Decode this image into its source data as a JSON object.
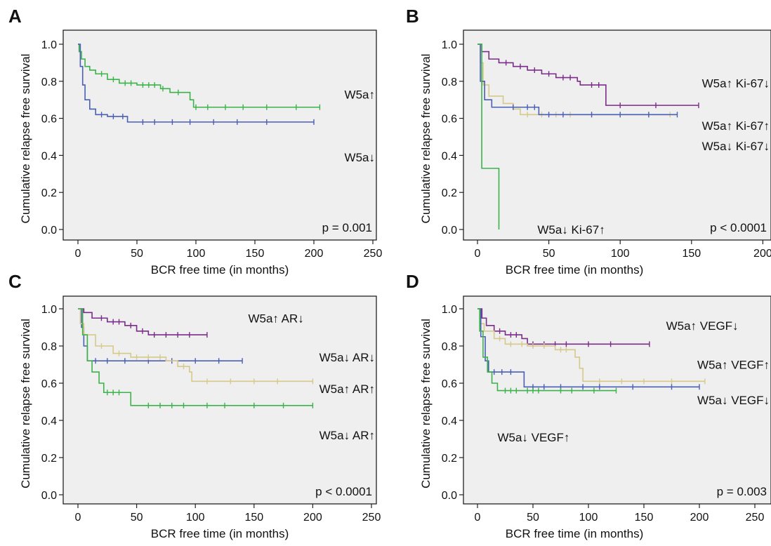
{
  "chart_data": [
    {
      "panel_letter": "A",
      "type": "line",
      "xlabel": "BCR free time (in months)",
      "ylabel": "Cumulative relapse free survival",
      "xlim": [
        0,
        250
      ],
      "ylim": [
        0,
        1.0
      ],
      "xticks": [
        "0",
        "50",
        "100",
        "150",
        "200",
        "250"
      ],
      "yticks": [
        "0.0",
        "0.2",
        "0.4",
        "0.6",
        "0.8",
        "1.0"
      ],
      "p_value": "p = 0.001",
      "series": [
        {
          "name": "W5a↑",
          "color": "#3bb34a",
          "label_x": 218,
          "label_y": 0.73,
          "points": [
            [
              0,
              1.0
            ],
            [
              1,
              0.96
            ],
            [
              3,
              0.92
            ],
            [
              6,
              0.88
            ],
            [
              10,
              0.86
            ],
            [
              15,
              0.84
            ],
            [
              25,
              0.81
            ],
            [
              35,
              0.79
            ],
            [
              50,
              0.78
            ],
            [
              70,
              0.76
            ],
            [
              78,
              0.74
            ],
            [
              95,
              0.7
            ],
            [
              98,
              0.66
            ],
            [
              205,
              0.66
            ]
          ],
          "censor": [
            20,
            30,
            40,
            45,
            55,
            60,
            65,
            72,
            85,
            100,
            110,
            125,
            140,
            160,
            185,
            205
          ]
        },
        {
          "name": "W5a↓",
          "color": "#4a5fb6",
          "label_x": 218,
          "label_y": 0.39,
          "points": [
            [
              0,
              1.0
            ],
            [
              2,
              0.88
            ],
            [
              4,
              0.78
            ],
            [
              6,
              0.7
            ],
            [
              10,
              0.65
            ],
            [
              15,
              0.62
            ],
            [
              25,
              0.61
            ],
            [
              42,
              0.58
            ],
            [
              200,
              0.58
            ]
          ],
          "censor": [
            20,
            30,
            38,
            55,
            65,
            80,
            95,
            115,
            135,
            160,
            200
          ]
        }
      ]
    },
    {
      "panel_letter": "B",
      "type": "line",
      "xlabel": "BCR free time (in months)",
      "ylabel": "Cumulative relapse free survival",
      "xlim": [
        0,
        200
      ],
      "ylim": [
        0,
        1.0
      ],
      "xticks": [
        "0",
        "50",
        "100",
        "150",
        "200"
      ],
      "yticks": [
        "0.0",
        "0.2",
        "0.4",
        "0.6",
        "0.8",
        "1.0"
      ],
      "p_value": "p < 0.0001",
      "series": [
        {
          "name": "W5a↑ Ki-67↓",
          "color": "#7b2c8a",
          "label_x": 148,
          "label_y": 0.79,
          "points": [
            [
              0,
              1.0
            ],
            [
              3,
              0.96
            ],
            [
              8,
              0.92
            ],
            [
              15,
              0.9
            ],
            [
              25,
              0.88
            ],
            [
              35,
              0.86
            ],
            [
              45,
              0.84
            ],
            [
              55,
              0.82
            ],
            [
              70,
              0.8
            ],
            [
              72,
              0.78
            ],
            [
              88,
              0.78
            ],
            [
              90,
              0.67
            ],
            [
              155,
              0.67
            ]
          ],
          "censor": [
            20,
            30,
            40,
            50,
            60,
            65,
            80,
            85,
            100,
            125,
            155
          ]
        },
        {
          "name": "W5a↑ Ki-67↑",
          "color": "#d6c98a",
          "label_x": 148,
          "label_y": 0.56,
          "points": [
            [
              0,
              1.0
            ],
            [
              2,
              0.9
            ],
            [
              4,
              0.78
            ],
            [
              8,
              0.72
            ],
            [
              18,
              0.68
            ],
            [
              25,
              0.65
            ],
            [
              30,
              0.62
            ],
            [
              135,
              0.62
            ]
          ],
          "censor": [
            35,
            45,
            55,
            65,
            80,
            100,
            120,
            135
          ]
        },
        {
          "name": "W5a↓ Ki-67↓",
          "color": "#4a5fb6",
          "label_x": 148,
          "label_y": 0.45,
          "points": [
            [
              0,
              1.0
            ],
            [
              2,
              0.8
            ],
            [
              5,
              0.7
            ],
            [
              10,
              0.66
            ],
            [
              20,
              0.66
            ],
            [
              30,
              0.66
            ],
            [
              43,
              0.62
            ],
            [
              140,
              0.62
            ]
          ],
          "censor": [
            25,
            35,
            40,
            50,
            60,
            80,
            100,
            120,
            140
          ]
        },
        {
          "name": "W5a↓ Ki-67↑",
          "color": "#3bb34a",
          "label_x": 42,
          "label_y": 0.0,
          "points": [
            [
              0,
              1.0
            ],
            [
              3,
              0.67
            ],
            [
              3,
              0.33
            ],
            [
              15,
              0.33
            ],
            [
              15,
              0.0
            ]
          ],
          "censor": []
        }
      ]
    },
    {
      "panel_letter": "C",
      "type": "line",
      "xlabel": "BCR free time (in months)",
      "ylabel": "Cumulative relapse free survival",
      "xlim": [
        0,
        250
      ],
      "ylim": [
        0,
        1.0
      ],
      "xticks": [
        "0",
        "50",
        "100",
        "150",
        "200",
        "250"
      ],
      "yticks": [
        "0.0",
        "0.2",
        "0.4",
        "0.6",
        "0.8",
        "1.0"
      ],
      "p_value": "p < 0.0001",
      "series": [
        {
          "name": "W5a↑ AR↓",
          "color": "#7b2c8a",
          "label_x": 145,
          "label_y": 0.95,
          "points": [
            [
              0,
              1.0
            ],
            [
              5,
              0.98
            ],
            [
              12,
              0.95
            ],
            [
              25,
              0.93
            ],
            [
              40,
              0.91
            ],
            [
              50,
              0.88
            ],
            [
              60,
              0.86
            ],
            [
              110,
              0.86
            ]
          ],
          "censor": [
            20,
            30,
            35,
            45,
            55,
            65,
            75,
            85,
            95,
            110
          ]
        },
        {
          "name": "W5a↓ AR↓",
          "color": "#4a5fb6",
          "label_x": 218,
          "label_y": 0.74,
          "points": [
            [
              0,
              1.0
            ],
            [
              3,
              0.9
            ],
            [
              5,
              0.8
            ],
            [
              8,
              0.72
            ],
            [
              140,
              0.72
            ]
          ],
          "censor": [
            15,
            25,
            40,
            60,
            80,
            100,
            120,
            140
          ]
        },
        {
          "name": "W5a↑ AR↑",
          "color": "#d6c98a",
          "label_x": 218,
          "label_y": 0.57,
          "points": [
            [
              0,
              1.0
            ],
            [
              2,
              0.92
            ],
            [
              5,
              0.86
            ],
            [
              15,
              0.8
            ],
            [
              30,
              0.76
            ],
            [
              45,
              0.74
            ],
            [
              75,
              0.72
            ],
            [
              85,
              0.69
            ],
            [
              95,
              0.66
            ],
            [
              97,
              0.61
            ],
            [
              200,
              0.61
            ]
          ],
          "censor": [
            20,
            35,
            50,
            60,
            70,
            90,
            110,
            130,
            150,
            170,
            200
          ]
        },
        {
          "name": "W5a↓ AR↑",
          "color": "#3bb34a",
          "label_x": 218,
          "label_y": 0.32,
          "points": [
            [
              0,
              1.0
            ],
            [
              4,
              0.86
            ],
            [
              8,
              0.72
            ],
            [
              12,
              0.66
            ],
            [
              18,
              0.6
            ],
            [
              22,
              0.55
            ],
            [
              40,
              0.55
            ],
            [
              45,
              0.48
            ],
            [
              200,
              0.48
            ]
          ],
          "censor": [
            25,
            30,
            35,
            60,
            70,
            80,
            90,
            110,
            125,
            150,
            175,
            200
          ]
        }
      ]
    },
    {
      "panel_letter": "D",
      "type": "line",
      "xlabel": "BCR free time (in months)",
      "ylabel": "Cumulative relapse free survival",
      "xlim": [
        0,
        250
      ],
      "ylim": [
        0,
        1.0
      ],
      "xticks": [
        "0",
        "50",
        "100",
        "150",
        "200",
        "250"
      ],
      "yticks": [
        "0.0",
        "0.2",
        "0.4",
        "0.6",
        "0.8",
        "1.0"
      ],
      "p_value": "p = 0.003",
      "series": [
        {
          "name": "W5a↑ VEGF↓",
          "color": "#7b2c8a",
          "label_x": 170,
          "label_y": 0.91,
          "points": [
            [
              0,
              1.0
            ],
            [
              4,
              0.95
            ],
            [
              8,
              0.91
            ],
            [
              15,
              0.88
            ],
            [
              25,
              0.86
            ],
            [
              40,
              0.84
            ],
            [
              45,
              0.81
            ],
            [
              155,
              0.81
            ]
          ],
          "censor": [
            20,
            30,
            35,
            50,
            60,
            70,
            80,
            100,
            120,
            155
          ]
        },
        {
          "name": "W5a↑ VEGF↑",
          "color": "#d6c98a",
          "label_x": 186,
          "label_y": 0.7,
          "points": [
            [
              0,
              1.0
            ],
            [
              2,
              0.92
            ],
            [
              6,
              0.88
            ],
            [
              15,
              0.84
            ],
            [
              25,
              0.81
            ],
            [
              45,
              0.8
            ],
            [
              70,
              0.78
            ],
            [
              88,
              0.74
            ],
            [
              92,
              0.68
            ],
            [
              95,
              0.61
            ],
            [
              205,
              0.61
            ]
          ],
          "censor": [
            20,
            30,
            40,
            50,
            60,
            75,
            80,
            110,
            130,
            150,
            175,
            205
          ]
        },
        {
          "name": "W5a↓ VEGF↓",
          "color": "#4a5fb6",
          "label_x": 186,
          "label_y": 0.51,
          "points": [
            [
              0,
              1.0
            ],
            [
              3,
              0.85
            ],
            [
              7,
              0.72
            ],
            [
              10,
              0.66
            ],
            [
              40,
              0.66
            ],
            [
              42,
              0.58
            ],
            [
              200,
              0.58
            ]
          ],
          "censor": [
            15,
            22,
            30,
            50,
            60,
            75,
            95,
            110,
            140,
            175,
            200
          ]
        },
        {
          "name": "W5a↓ VEGF↑",
          "color": "#3bb34a",
          "label_x": 18,
          "label_y": 0.31,
          "points": [
            [
              0,
              1.0
            ],
            [
              2,
              0.88
            ],
            [
              5,
              0.74
            ],
            [
              9,
              0.66
            ],
            [
              13,
              0.6
            ],
            [
              18,
              0.56
            ],
            [
              125,
              0.56
            ]
          ],
          "censor": [
            25,
            30,
            35,
            45,
            50,
            55,
            75,
            85,
            105,
            125
          ]
        }
      ]
    }
  ]
}
